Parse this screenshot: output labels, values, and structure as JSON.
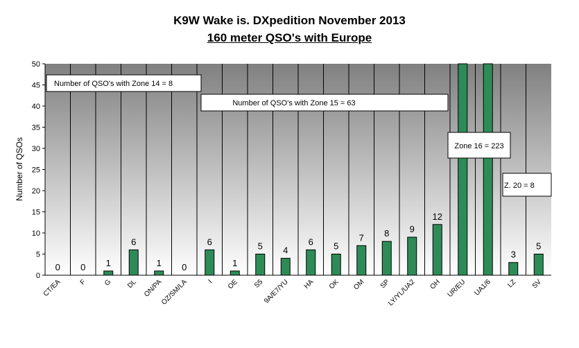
{
  "title": "K9W Wake is. DXpedition  November 2013",
  "subtitle": "160 meter QSO's with Europe ",
  "chart_data": {
    "type": "bar",
    "title": "K9W Wake is. DXpedition  November 2013",
    "subtitle": "160 meter QSO's with Europe ",
    "xlabel": "",
    "ylabel": "Number of QSOs",
    "ylim": [
      0,
      50
    ],
    "yticks": [
      0,
      5,
      10,
      15,
      20,
      25,
      30,
      35,
      40,
      45,
      50
    ],
    "grid": false,
    "categories": [
      "CT/EA",
      "F",
      "G",
      "DL",
      "ON/PA",
      "OZ/SM/LA",
      "I",
      "OE",
      "S5",
      "9A/E7/YU",
      "HA",
      "OK",
      "OM",
      "SP",
      "LY/YL/UA2",
      "OH",
      "UR/EU",
      "UA1/6",
      "LZ",
      "SV"
    ],
    "values": [
      0,
      0,
      1,
      6,
      1,
      0,
      6,
      1,
      5,
      4,
      6,
      5,
      7,
      8,
      9,
      12,
      50,
      50,
      3,
      5
    ],
    "data_labels": [
      "0",
      "0",
      "1",
      "6",
      "1",
      "0",
      "6",
      "1",
      "5",
      "4",
      "6",
      "5",
      "7",
      "8",
      "9",
      "12",
      "",
      "",
      "3",
      "5"
    ],
    "bar_color": "#2e8b57",
    "annotations": [
      {
        "text": "Number of QSO's with Zone 14 = 8"
      },
      {
        "text": "Number of QSO's with Zone 15 = 63"
      },
      {
        "text": "Zone 16 = 223"
      },
      {
        "text": "Z. 20 = 8"
      }
    ]
  }
}
